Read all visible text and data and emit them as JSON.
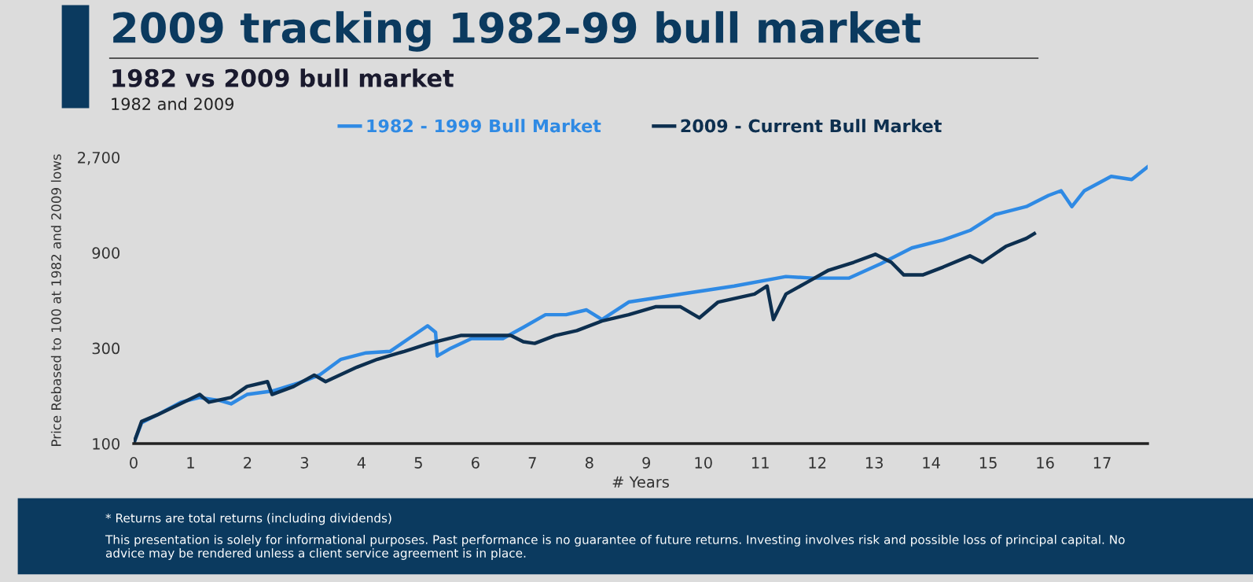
{
  "chart_data": {
    "type": "line",
    "title": "2009 tracking 1982-99 bull market",
    "subtitle": "1982 vs 2009 bull market",
    "xlabel": "# Years",
    "ylabel": "Price Rebased to 100 at 1982 and 2009 lows",
    "annotations": [
      "1982 and 2009",
      "* Returns are total returns (including dividends)",
      "This presentation is solely for informational purposes. Past performance is no guarantee of future returns. Investing involves risk and possible loss of principal capital. No advice may be rendered unless a client service agreement is in place."
    ],
    "log": true,
    "xlim": [
      0,
      17.8
    ],
    "ylim": [
      100,
      2700
    ],
    "xticks": [
      0,
      1,
      2,
      3,
      4,
      5,
      6,
      7,
      8,
      9,
      10,
      11,
      12,
      13,
      14,
      15,
      16,
      17
    ],
    "yticks": [
      100,
      300,
      900,
      {
        "value": 2700,
        "label": "2,700"
      }
    ],
    "grid": false,
    "legend": "top",
    "marker": "none",
    "line_style": "solid",
    "series": [
      {
        "name": "1982 - 1999 Bull Market",
        "color": "#2f8ae4",
        "x": [
          0,
          0.14,
          0.41,
          0.83,
          1.16,
          1.52,
          1.71,
          1.99,
          2.43,
          2.9,
          3.26,
          3.64,
          4.08,
          4.5,
          4.83,
          5.16,
          5.3,
          5.33,
          5.57,
          5.93,
          6.48,
          6.84,
          7.23,
          7.59,
          7.95,
          8.22,
          8.69,
          9.6,
          10.54,
          11.45,
          11.92,
          12.56,
          13.11,
          13.66,
          14.21,
          14.68,
          15.12,
          15.67,
          16.06,
          16.28,
          16.47,
          16.69,
          17.16,
          17.52,
          17.8
        ],
        "values": [
          100,
          127,
          139,
          161,
          170,
          164,
          158,
          176,
          183,
          201,
          220,
          264,
          284,
          289,
          335,
          388,
          360,
          274,
          300,
          335,
          335,
          381,
          441,
          441,
          466,
          417,
          510,
          559,
          613,
          684,
          672,
          672,
          792,
          951,
          1042,
          1163,
          1397,
          1531,
          1740,
          1838,
          1531,
          1838,
          2168,
          2090,
          2419
        ]
      },
      {
        "name": "2009 - Current Bull Market",
        "color": "#0d2f4f",
        "x": [
          0,
          0.14,
          0.41,
          1.16,
          1.32,
          1.71,
          1.99,
          2.35,
          2.43,
          2.81,
          3.17,
          3.37,
          3.92,
          4.28,
          4.75,
          5.19,
          5.74,
          6.29,
          6.62,
          6.84,
          7.04,
          7.4,
          7.78,
          8.22,
          8.69,
          9.16,
          9.6,
          9.93,
          10.26,
          10.9,
          11.12,
          11.23,
          11.45,
          11.81,
          12.2,
          12.64,
          13.02,
          13.3,
          13.52,
          13.85,
          14.21,
          14.68,
          14.9,
          15.31,
          15.67,
          15.81
        ],
        "values": [
          100,
          129,
          139,
          176,
          161,
          170,
          193,
          204,
          176,
          193,
          220,
          204,
          241,
          264,
          289,
          317,
          347,
          347,
          347,
          323,
          317,
          347,
          367,
          410,
          441,
          483,
          483,
          425,
          510,
          559,
          613,
          417,
          559,
          638,
          736,
          806,
          884,
          806,
          697,
          697,
          763,
          868,
          806,
          968,
          1061,
          1121
        ]
      }
    ]
  }
}
